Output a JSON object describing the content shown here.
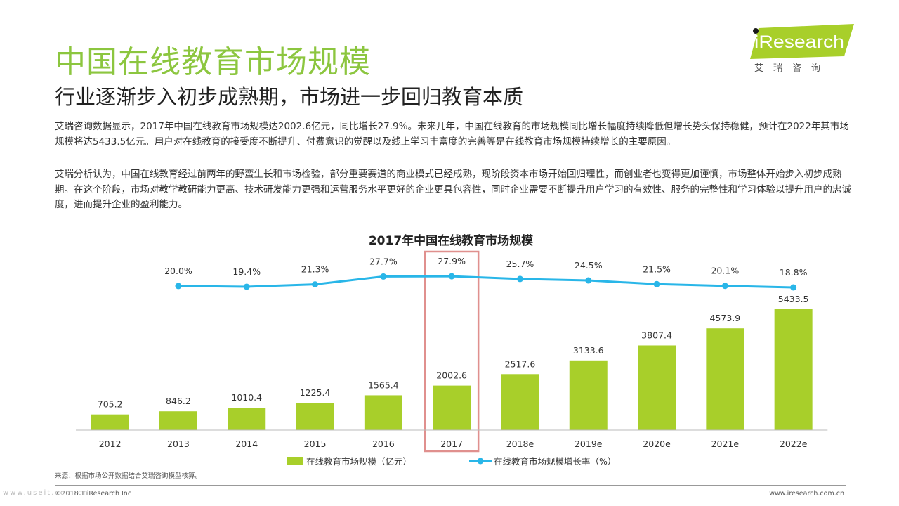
{
  "header": {
    "title": "中国在线教育市场规模",
    "subtitle": "行业逐渐步入初步成熟期，市场进一步回归教育本质"
  },
  "logo": {
    "brand": "iResearch",
    "brand_cn": "艾瑞咨询",
    "accent_color": "#a8cf2a"
  },
  "body": {
    "para1": "艾瑞咨询数据显示，2017年中国在线教育市场规模达2002.6亿元，同比增长27.9%。未来几年，中国在线教育的市场规模同比增长幅度持续降低但增长势头保持稳健，预计在2022年其市场规模将达5433.5亿元。用户对在线教育的接受度不断提升、付费意识的觉醒以及线上学习丰富度的完善等是在线教育市场规模持续增长的主要原因。",
    "para2": "艾瑞分析认为，中国在线教育经过前两年的野蛮生长和市场检验，部分重要赛道的商业模式已经成熟，现阶段资本市场开始回归理性，而创业者也变得更加谨慎，市场整体开始步入初步成熟期。在这个阶段，市场对教学教研能力更高、技术研发能力更强和运营服务水平更好的企业更具包容性，同时企业需要不断提升用户学习的有效性、服务的完整性和学习体验以提升用户的忠诚度，进而提升企业的盈利能力。"
  },
  "chart_data": {
    "type": "bar",
    "title": "2017年中国在线教育市场规模",
    "categories": [
      "2012",
      "2013",
      "2014",
      "2015",
      "2016",
      "2017",
      "2018e",
      "2019e",
      "2020e",
      "2021e",
      "2022e"
    ],
    "series": [
      {
        "name": "在线教育市场规模（亿元）",
        "type": "bar",
        "color": "#a8cf2a",
        "values": [
          705.2,
          846.2,
          1010.4,
          1225.4,
          1565.4,
          2002.6,
          2517.6,
          3133.6,
          3807.4,
          4573.9,
          5433.5
        ]
      },
      {
        "name": "在线教育市场规模增长率（%）",
        "type": "line",
        "color": "#29b6e8",
        "values": [
          null,
          20.0,
          19.4,
          21.3,
          27.7,
          27.9,
          25.7,
          24.5,
          21.5,
          20.1,
          18.8
        ]
      }
    ],
    "bar_value_labels": [
      "705.2",
      "846.2",
      "1010.4",
      "1225.4",
      "1565.4",
      "2002.6",
      "2517.6",
      "3133.6",
      "3807.4",
      "4573.9",
      "5433.5"
    ],
    "line_value_labels": [
      "",
      "20.0%",
      "19.4%",
      "21.3%",
      "27.7%",
      "27.9%",
      "25.7%",
      "24.5%",
      "21.5%",
      "20.1%",
      "18.8%"
    ],
    "highlight_category": "2017",
    "highlight_color": "#e0908e",
    "legend_position": "bottom",
    "grid": false
  },
  "footer": {
    "source": "来源：根据市场公开数据结合艾瑞咨询模型核算。",
    "copyright": "©2018.1 iResearch Inc",
    "website": "www.iresearch.com.cn",
    "watermark": "www.useit.com.cn"
  }
}
